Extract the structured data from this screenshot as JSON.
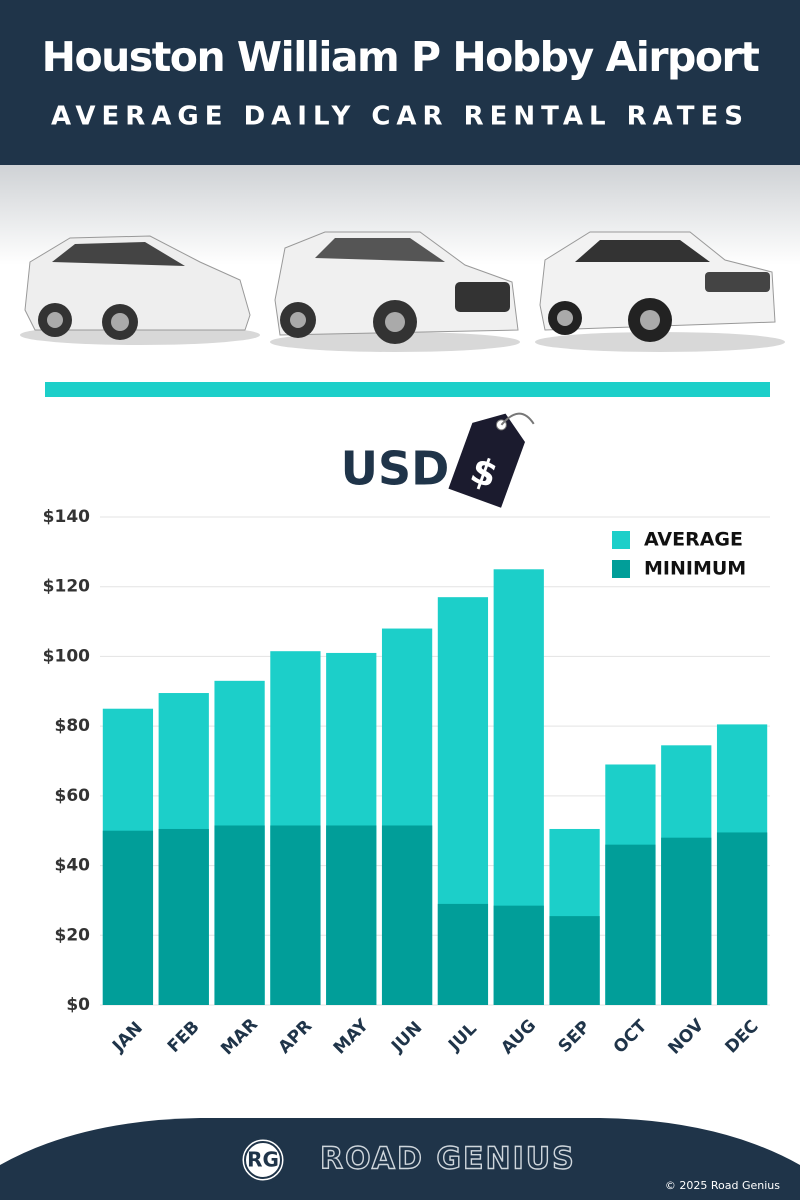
{
  "header": {
    "title": "Houston William P Hobby Airport",
    "subtitle": "AVERAGE DAILY CAR RENTAL RATES"
  },
  "currency": {
    "label": "USD",
    "symbol": "$"
  },
  "chart_data": {
    "type": "bar",
    "barmode": "overlay",
    "categories": [
      "JAN",
      "FEB",
      "MAR",
      "APR",
      "MAY",
      "JUN",
      "JUL",
      "AUG",
      "SEP",
      "OCT",
      "NOV",
      "DEC"
    ],
    "series": [
      {
        "name": "AVERAGE",
        "color": "#1ccfc9",
        "values": [
          85,
          89.5,
          93,
          101.5,
          101,
          108,
          117,
          125,
          50.5,
          69,
          74.5,
          80.5
        ]
      },
      {
        "name": "MINIMUM",
        "color": "#019e99",
        "values": [
          50,
          50.5,
          51.5,
          51.5,
          51.5,
          51.5,
          29,
          28.5,
          25.5,
          46,
          48,
          49.5
        ]
      }
    ],
    "ylim": [
      0,
      140
    ],
    "yticks": [
      {
        "value": 0,
        "label": "$0"
      },
      {
        "value": 20,
        "label": "$20"
      },
      {
        "value": 40,
        "label": "$40"
      },
      {
        "value": 60,
        "label": "$60"
      },
      {
        "value": 80,
        "label": "$80"
      },
      {
        "value": 100,
        "label": "$100"
      },
      {
        "value": 120,
        "label": "$120"
      },
      {
        "value": 140,
        "label": "$140"
      }
    ],
    "grid": true,
    "legend": "top-right"
  },
  "footer": {
    "logo": "RG",
    "brand": "ROAD GENIUS",
    "copyright": "© 2025 Road Genius"
  }
}
